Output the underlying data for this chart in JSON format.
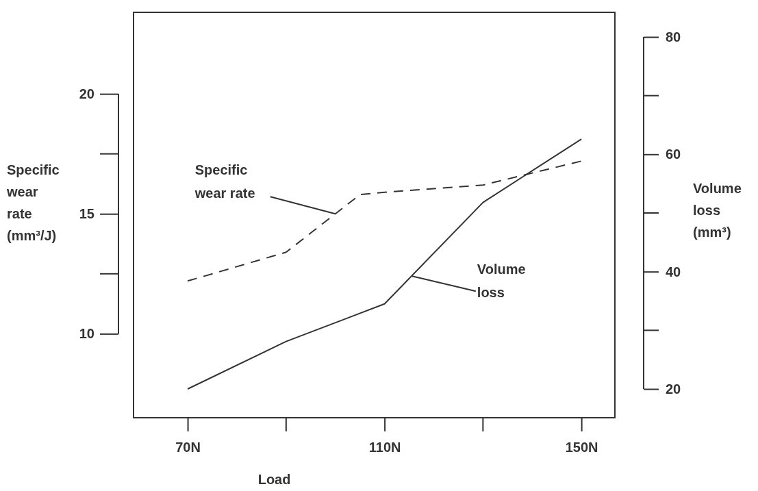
{
  "chart_data": {
    "type": "line",
    "xlabel": "Load",
    "ylabel": "Specific wear rate (mm³/J)",
    "y2label": "Volume loss (mm³)",
    "xlim": [
      59,
      156.8
    ],
    "xticks": [
      {
        "value": 70,
        "label": "70N"
      },
      {
        "value": 110,
        "label": "110N"
      },
      {
        "value": 150,
        "label": "150N"
      }
    ],
    "ylim": [
      6.5,
      23.4
    ],
    "yticks": [
      10,
      15,
      20
    ],
    "y2lim": [
      15.1,
      84.2
    ],
    "y2ticks": [
      20,
      40,
      60,
      80
    ],
    "series": [
      {
        "color": "#333333",
        "line_style": "dashed",
        "x": [
          70,
          90,
          100,
          105,
          110,
          130,
          150
        ],
        "values": [
          12.2,
          13.4,
          15.0,
          15.8,
          15.9,
          16.2,
          17.2
        ]
      },
      {
        "color": "#333333",
        "line_style": "solid",
        "axis": "y2",
        "x": [
          70,
          90,
          110,
          130,
          150
        ],
        "values": [
          20.0,
          28.1,
          34.5,
          51.8,
          62.6
        ]
      }
    ],
    "annotations": [
      {
        "text": "Specific wear rate",
        "x": 100,
        "y": 15.0
      },
      {
        "text": "Volume loss",
        "x": 115.6,
        "y": 12.4
      }
    ],
    "marker": "none"
  }
}
